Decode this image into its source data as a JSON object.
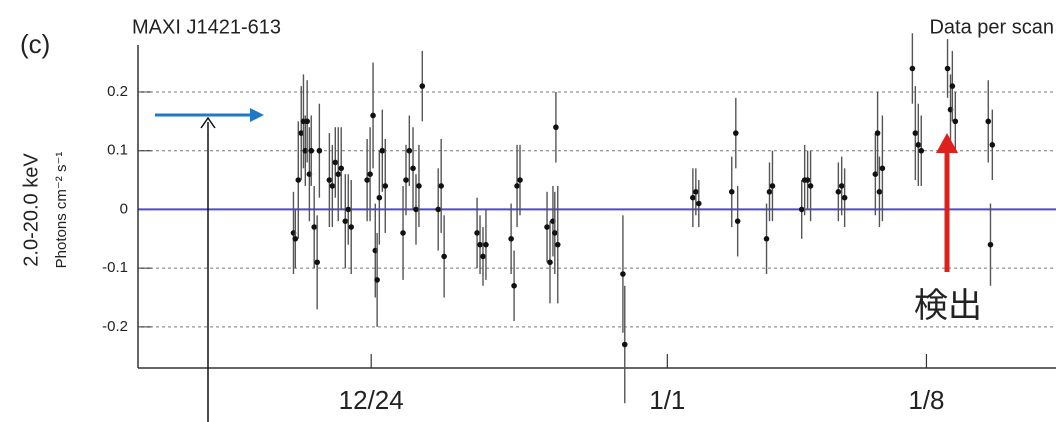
{
  "chart_data": {
    "type": "scatter",
    "panel_label": "(c)",
    "title": "MAXI J1421-613",
    "subtitle": "Data per scan",
    "ylabel": "2.0-20.0 keV",
    "ylabel_units": "Photons cm⁻² s⁻¹",
    "annotation": "検出",
    "ylim": [
      -0.27,
      0.28
    ],
    "yticks": [
      -0.2,
      -0.1,
      0,
      0.1,
      0.2
    ],
    "xlim": [
      17.7,
      42.5
    ],
    "xticks": [
      {
        "value": 24,
        "label": "12/24"
      },
      {
        "value": 32,
        "label": "1/1"
      },
      {
        "value": 39,
        "label": "1/8"
      }
    ],
    "grid": true,
    "zero_line_color": "#4a4adb",
    "series": [
      {
        "color": "#111",
        "x": [
          21.9,
          21.95,
          22.03,
          22.11,
          22.17,
          22.22,
          22.27,
          22.33,
          22.38,
          22.46,
          22.54,
          22.6,
          22.87,
          22.95,
          23.03,
          23.11,
          23.19,
          23.3,
          23.38,
          23.46,
          23.89,
          23.97,
          24.05,
          24.11,
          24.16,
          24.22,
          24.3,
          24.38,
          24.86,
          24.94,
          25.03,
          25.13,
          25.21,
          25.29,
          25.38,
          25.81,
          25.89,
          25.97,
          26.86,
          26.94,
          27.02,
          27.1,
          27.78,
          27.86,
          27.94,
          28.02,
          28.75,
          28.83,
          28.91,
          28.96,
          28.99,
          29.04,
          30.8,
          30.85,
          32.69,
          32.77,
          32.85,
          33.74,
          33.85,
          33.9,
          34.68,
          34.76,
          34.84,
          35.63,
          35.71,
          35.79,
          35.87,
          36.62,
          36.71,
          36.79,
          37.62,
          37.68,
          37.73,
          37.81,
          38.62,
          38.7,
          38.78,
          38.86,
          39.57,
          39.65,
          39.7,
          39.78,
          40.67,
          40.73,
          40.78
        ],
        "values": [
          -0.04,
          -0.05,
          0.05,
          0.13,
          0.15,
          0.1,
          0.15,
          0.06,
          0.1,
          -0.03,
          -0.09,
          0.1,
          0.05,
          0.04,
          0.08,
          0.06,
          0.07,
          -0.02,
          0.0,
          -0.03,
          0.05,
          0.06,
          0.16,
          -0.07,
          -0.12,
          0.02,
          0.1,
          0.04,
          -0.04,
          0.05,
          0.1,
          0.07,
          0.0,
          0.04,
          0.21,
          0.0,
          0.04,
          -0.08,
          -0.04,
          -0.06,
          -0.08,
          -0.06,
          -0.05,
          -0.13,
          0.04,
          0.05,
          -0.03,
          -0.09,
          -0.02,
          -0.04,
          0.14,
          -0.06,
          -0.11,
          -0.23,
          0.02,
          0.03,
          0.01,
          0.03,
          0.13,
          -0.02,
          -0.05,
          0.03,
          0.04,
          0.0,
          0.05,
          0.05,
          0.04,
          0.03,
          0.04,
          0.02,
          0.06,
          0.13,
          0.03,
          0.07,
          0.24,
          0.13,
          0.11,
          0.1,
          0.24,
          0.17,
          0.21,
          0.15,
          0.15,
          -0.06,
          0.11
        ],
        "errors": [
          0.07,
          0.05,
          0.1,
          0.08,
          0.08,
          0.06,
          0.07,
          0.08,
          0.06,
          0.07,
          0.08,
          0.08,
          0.08,
          0.07,
          0.06,
          0.08,
          0.07,
          0.08,
          0.06,
          0.08,
          0.07,
          0.08,
          0.09,
          0.08,
          0.08,
          0.08,
          0.07,
          0.08,
          0.08,
          0.06,
          0.06,
          0.07,
          0.06,
          0.07,
          0.06,
          0.07,
          0.08,
          0.07,
          0.06,
          0.05,
          0.05,
          0.06,
          0.06,
          0.06,
          0.07,
          0.06,
          0.06,
          0.07,
          0.06,
          0.07,
          0.06,
          0.1,
          0.1,
          0.1,
          0.05,
          0.04,
          0.04,
          0.06,
          0.06,
          0.06,
          0.06,
          0.05,
          0.06,
          0.05,
          0.06,
          0.05,
          0.06,
          0.05,
          0.05,
          0.05,
          0.07,
          0.07,
          0.06,
          0.09,
          0.06,
          0.08,
          0.07,
          0.06,
          0.05,
          0.06,
          0.06,
          0.05,
          0.07,
          0.07,
          0.06
        ]
      }
    ]
  }
}
